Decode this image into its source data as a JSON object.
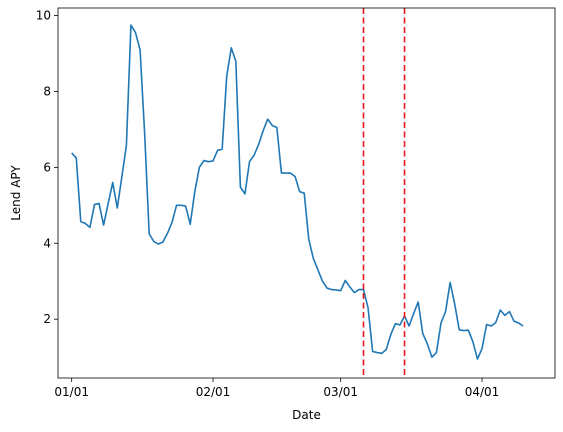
{
  "chart_data": {
    "type": "line",
    "xlabel": "Date",
    "ylabel": "Lend APY",
    "x_start": "01/01",
    "xlim": [
      "12/29",
      "04/17"
    ],
    "ylim": [
      0.45,
      10.2
    ],
    "x_ticks": [
      {
        "date": "01/01",
        "label": "01/01"
      },
      {
        "date": "02/01",
        "label": "02/01"
      },
      {
        "date": "03/01",
        "label": "03/01"
      },
      {
        "date": "04/01",
        "label": "04/01"
      }
    ],
    "y_ticks": [
      2,
      4,
      6,
      8,
      10
    ],
    "grid": false,
    "line_color": "#1f77b4",
    "vline_color": "#e41a1c",
    "vlines": [
      {
        "date": "03/06"
      },
      {
        "date": "03/15"
      }
    ],
    "series": [
      {
        "x": [
          "01/01",
          "01/02",
          "01/03",
          "01/04",
          "01/05",
          "01/06",
          "01/07",
          "01/08",
          "01/09",
          "01/10",
          "01/11",
          "01/12",
          "01/13",
          "01/14",
          "01/15",
          "01/16",
          "01/17",
          "01/18",
          "01/19",
          "01/20",
          "01/21",
          "01/22",
          "01/23",
          "01/24",
          "01/25",
          "01/26",
          "01/27",
          "01/28",
          "01/29",
          "01/30",
          "01/31",
          "02/01",
          "02/02",
          "02/03",
          "02/04",
          "02/05",
          "02/06",
          "02/07",
          "02/08",
          "02/09",
          "02/10",
          "02/11",
          "02/12",
          "02/13",
          "02/14",
          "02/15",
          "02/16",
          "02/17",
          "02/18",
          "02/19",
          "02/20",
          "02/21",
          "02/22",
          "02/23",
          "02/24",
          "02/25",
          "02/26",
          "02/27",
          "02/28",
          "03/01",
          "03/02",
          "03/03",
          "03/04",
          "03/05",
          "03/06",
          "03/07",
          "03/08",
          "03/09",
          "03/10",
          "03/11",
          "03/12",
          "03/13",
          "03/14",
          "03/15",
          "03/16",
          "03/17",
          "03/18",
          "03/19",
          "03/20",
          "03/21",
          "03/22",
          "03/23",
          "03/24",
          "03/25",
          "03/26",
          "03/27",
          "03/28",
          "03/29",
          "03/30",
          "03/31",
          "04/01",
          "04/02",
          "04/03",
          "04/04",
          "04/05",
          "04/06",
          "04/07",
          "04/08",
          "04/09",
          "04/10"
        ],
        "values": [
          6.38,
          6.25,
          4.57,
          4.52,
          4.42,
          5.02,
          5.05,
          4.48,
          5.05,
          5.6,
          4.93,
          5.75,
          6.58,
          9.75,
          9.55,
          9.1,
          6.9,
          4.25,
          4.05,
          3.98,
          4.03,
          4.26,
          4.55,
          5.0,
          5.0,
          4.98,
          4.5,
          5.36,
          6.0,
          6.18,
          6.15,
          6.17,
          6.45,
          6.48,
          8.4,
          9.15,
          8.8,
          5.48,
          5.3,
          6.15,
          6.32,
          6.6,
          6.97,
          7.27,
          7.1,
          7.05,
          5.85,
          5.85,
          5.85,
          5.76,
          5.36,
          5.32,
          4.1,
          3.6,
          3.3,
          3.0,
          2.82,
          2.78,
          2.77,
          2.75,
          3.02,
          2.85,
          2.7,
          2.78,
          2.78,
          2.3,
          1.15,
          1.12,
          1.1,
          1.2,
          1.6,
          1.88,
          1.85,
          2.08,
          1.82,
          2.15,
          2.45,
          1.62,
          1.35,
          1.0,
          1.12,
          1.9,
          2.2,
          2.97,
          2.4,
          1.72,
          1.7,
          1.71,
          1.4,
          0.95,
          1.23,
          1.86,
          1.82,
          1.91,
          2.24,
          2.1,
          2.2,
          1.95,
          1.9,
          1.82
        ]
      }
    ]
  }
}
